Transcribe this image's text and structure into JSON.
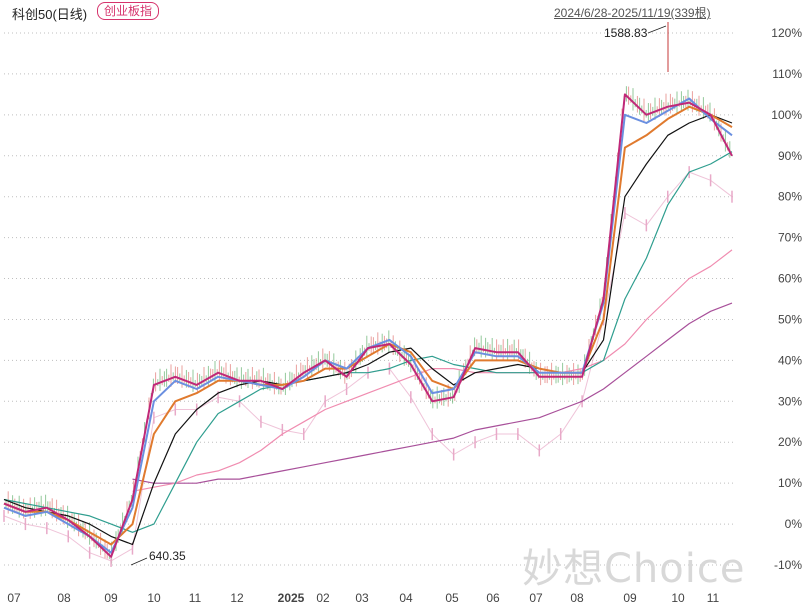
{
  "header": {
    "title": "科创50(日线)",
    "badge": "创业板指",
    "range": "2024/6/28-2025/11/19(339根)"
  },
  "watermark": "妙想Choice",
  "chart_data": {
    "type": "line",
    "x_axis_labels": [
      "07",
      "08",
      "09",
      "10",
      "11",
      "12",
      "2025",
      "02",
      "03",
      "04",
      "05",
      "06",
      "07",
      "08",
      "09",
      "10",
      "11"
    ],
    "y_axis_labels": [
      "120%",
      "110%",
      "100%",
      "90%",
      "80%",
      "70%",
      "60%",
      "50%",
      "40%",
      "30%",
      "20%",
      "10%",
      "0%",
      "-10%"
    ],
    "ylim": [
      -10,
      120
    ],
    "ytick_colors": {
      "-10%": "#1aa14a"
    },
    "annotations": [
      {
        "text": "1588.83",
        "note": "high"
      },
      {
        "text": "640.35",
        "note": "low"
      }
    ],
    "series": [
      {
        "color": "#c02878",
        "values": [
          5,
          3,
          4,
          1,
          -3,
          -8,
          6,
          34,
          36,
          34,
          37,
          35,
          35,
          33,
          37,
          40,
          36,
          43,
          44,
          39,
          30,
          31,
          43,
          42,
          42,
          36,
          36,
          36,
          55,
          105,
          100,
          102,
          103,
          100,
          90
        ]
      },
      {
        "color": "#6a8fe0",
        "values": [
          4,
          2,
          3,
          0,
          -3,
          -7,
          4,
          30,
          35,
          33,
          36,
          35,
          34,
          33,
          36,
          40,
          38,
          43,
          45,
          41,
          32,
          33,
          42,
          41,
          41,
          37,
          37,
          37,
          54,
          100,
          98,
          101,
          104,
          99,
          95
        ]
      },
      {
        "color": "#e07a2e",
        "values": [
          5,
          3,
          3,
          1,
          -2,
          -5,
          0,
          22,
          30,
          32,
          35,
          35,
          34,
          34,
          35,
          38,
          38,
          41,
          44,
          42,
          35,
          33,
          40,
          40,
          40,
          38,
          37,
          37,
          50,
          92,
          95,
          99,
          102,
          100,
          97
        ]
      },
      {
        "color": "#111111",
        "values": [
          6,
          4,
          3,
          2,
          0,
          -3,
          -5,
          10,
          22,
          28,
          32,
          34,
          35,
          34,
          35,
          36,
          37,
          39,
          42,
          43,
          38,
          34,
          37,
          38,
          39,
          38,
          37,
          37,
          45,
          80,
          88,
          95,
          98,
          100,
          98
        ]
      },
      {
        "color": "#2f9e8f",
        "values": [
          6,
          5,
          4,
          3,
          2,
          0,
          -2,
          0,
          10,
          20,
          27,
          30,
          33,
          34,
          35,
          36,
          37,
          37,
          38,
          40,
          41,
          39,
          38,
          37,
          37,
          37,
          37,
          37,
          40,
          55,
          65,
          78,
          86,
          88,
          91
        ]
      },
      {
        "color": "#f08cb0",
        "values": [
          null,
          null,
          null,
          null,
          null,
          null,
          8,
          9,
          10,
          12,
          13,
          15,
          18,
          22,
          25,
          28,
          30,
          32,
          34,
          36,
          38,
          38,
          37,
          37,
          37,
          37,
          37,
          38,
          40,
          44,
          50,
          55,
          60,
          63,
          67
        ]
      },
      {
        "color": "#a8509a",
        "values": [
          null,
          null,
          null,
          null,
          null,
          null,
          11,
          10,
          10,
          10,
          11,
          11,
          12,
          13,
          14,
          15,
          16,
          17,
          18,
          19,
          20,
          21,
          23,
          24,
          25,
          26,
          28,
          30,
          33,
          37,
          41,
          45,
          49,
          52,
          54
        ]
      }
    ],
    "ghost_series": {
      "color": "#e8a9c8",
      "values": [
        2,
        0,
        -1,
        -3,
        -7,
        -9,
        -6,
        26,
        28,
        28,
        31,
        30,
        25,
        23,
        22,
        30,
        33,
        37,
        38,
        31,
        22,
        17,
        20,
        22,
        22,
        18,
        22,
        30,
        50,
        76,
        73,
        80,
        86,
        84,
        80
      ]
    }
  }
}
